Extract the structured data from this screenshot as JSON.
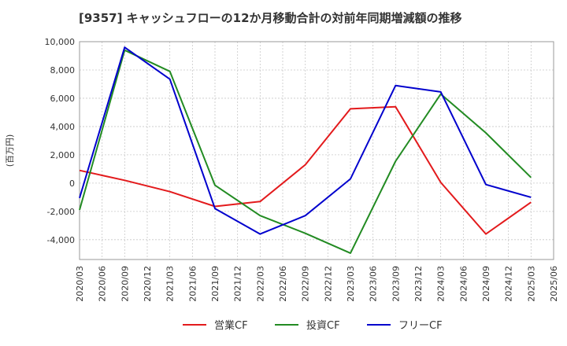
{
  "chart_data": {
    "type": "line",
    "title": "[9357]  キャッシュフローの12か月移動合計の対前年同期増減額の推移",
    "ylabel": "(百万円)",
    "xlabel": "",
    "ylim": [
      -5400,
      10000
    ],
    "yticks": [
      10000,
      8000,
      6000,
      4000,
      2000,
      0,
      -2000,
      -4000
    ],
    "ytick_labels": [
      "10,000",
      "8,000",
      "6,000",
      "4,000",
      "2,000",
      "0",
      "-2,000",
      "-4,000"
    ],
    "categories": [
      "2020/03",
      "2020/06",
      "2020/09",
      "2020/12",
      "2021/03",
      "2021/06",
      "2021/09",
      "2021/12",
      "2022/03",
      "2022/06",
      "2022/09",
      "2022/12",
      "2023/03",
      "2023/06",
      "2023/09",
      "2023/12",
      "2024/03",
      "2024/06",
      "2024/09",
      "2024/12",
      "2025/03",
      "2025/06"
    ],
    "grid": true,
    "legend_position": "bottom",
    "series": [
      {
        "name": "営業CF",
        "color": "#e31a1c",
        "values": [
          900,
          null,
          200,
          null,
          -600,
          null,
          -1650,
          null,
          -1300,
          null,
          1300,
          null,
          5250,
          null,
          5400,
          null,
          50,
          null,
          -3600,
          null,
          -1350,
          null
        ]
      },
      {
        "name": "投資CF",
        "color": "#228b22",
        "values": [
          -1900,
          null,
          9400,
          null,
          7900,
          null,
          -150,
          null,
          -2300,
          null,
          -3550,
          null,
          -4950,
          null,
          1550,
          null,
          6300,
          null,
          3550,
          null,
          400,
          null
        ]
      },
      {
        "name": "フリーCF",
        "color": "#0000cd",
        "values": [
          -1050,
          null,
          9600,
          null,
          7350,
          null,
          -1800,
          null,
          -3600,
          null,
          -2300,
          null,
          300,
          null,
          6900,
          null,
          6450,
          null,
          -100,
          null,
          -1000,
          null
        ]
      }
    ]
  }
}
